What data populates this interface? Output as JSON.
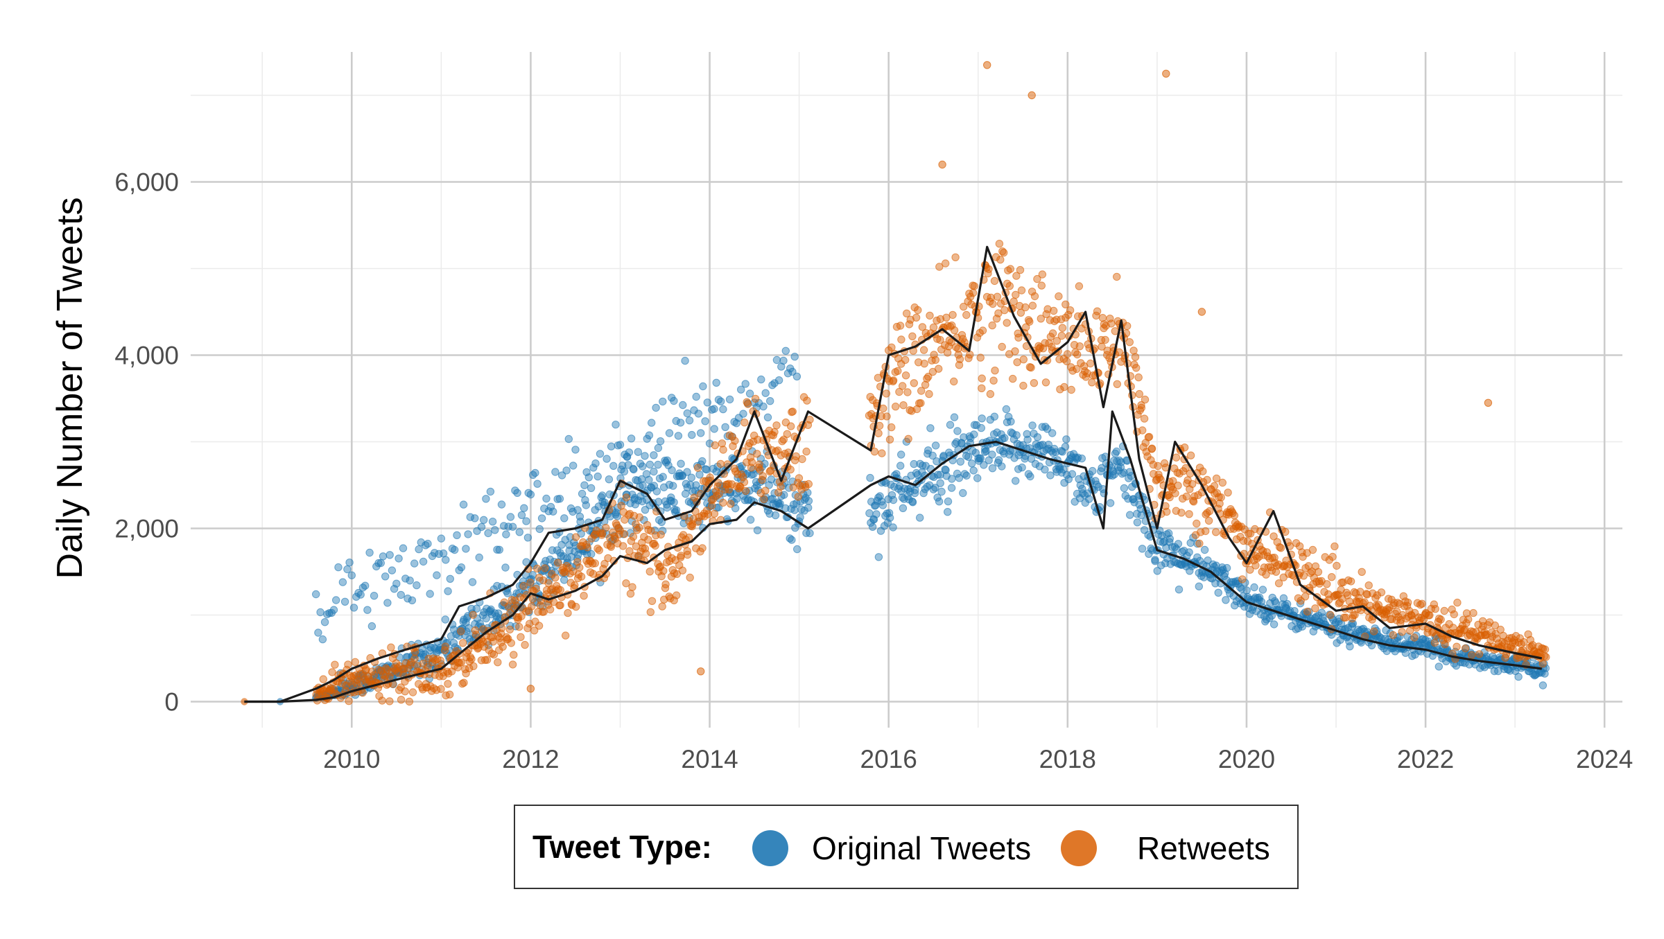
{
  "chart_data": {
    "type": "scatter",
    "title": "",
    "xlabel": "",
    "ylabel": "Daily Number of Tweets",
    "xlim": [
      2008.2,
      2024.2
    ],
    "ylim": [
      -300,
      7500
    ],
    "x_ticks": [
      2010,
      2012,
      2014,
      2016,
      2018,
      2020,
      2022,
      2024
    ],
    "x_tick_labels": [
      "2010",
      "2012",
      "2014",
      "2016",
      "2018",
      "2020",
      "2022",
      "2024"
    ],
    "y_ticks": [
      0,
      2000,
      4000,
      6000
    ],
    "y_tick_labels": [
      "0",
      "2,000",
      "4,000",
      "6,000"
    ],
    "grid": true,
    "legend": {
      "position": "bottom",
      "title": "Tweet Type:",
      "entries": [
        "Original Tweets",
        "Retweets"
      ]
    },
    "series": [
      {
        "name": "Original Tweets",
        "color": "#1f78b4",
        "trend_x": [
          2008.8,
          2009.2,
          2009.6,
          2009.8,
          2010.0,
          2010.3,
          2010.6,
          2011.0,
          2011.2,
          2011.5,
          2011.8,
          2012.0,
          2012.2,
          2012.5,
          2012.8,
          2013.0,
          2013.3,
          2013.5,
          2013.8,
          2014.0,
          2014.3,
          2014.5,
          2014.8,
          2015.1,
          2015.8,
          2016.0,
          2016.3,
          2016.6,
          2016.9,
          2017.2,
          2017.5,
          2017.8,
          2018.0,
          2018.2,
          2018.4,
          2018.5,
          2018.7,
          2019.0,
          2019.3,
          2019.6,
          2020.0,
          2020.3,
          2020.6,
          2021.0,
          2021.3,
          2021.6,
          2022.0,
          2022.3,
          2022.6,
          2023.0,
          2023.3
        ],
        "trend_y": [
          0,
          0,
          20,
          50,
          120,
          200,
          280,
          380,
          550,
          800,
          1000,
          1250,
          1180,
          1280,
          1450,
          1680,
          1600,
          1750,
          1850,
          2050,
          2100,
          2300,
          2200,
          2000,
          2500,
          2600,
          2500,
          2750,
          2950,
          3000,
          2900,
          2800,
          2750,
          2700,
          2000,
          3350,
          2800,
          1750,
          1650,
          1500,
          1150,
          1050,
          950,
          820,
          720,
          650,
          600,
          520,
          470,
          420,
          380
        ],
        "scatter_anchors": {
          "x": [
            2009.6,
            2009.9,
            2010.2,
            2010.6,
            2011.0,
            2011.4,
            2011.8,
            2012.0,
            2012.4,
            2012.8,
            2013.0,
            2013.5,
            2014.0,
            2014.5,
            2015.1,
            2015.8,
            2016.2,
            2016.6,
            2017.0,
            2017.5,
            2018.0,
            2018.3,
            2018.6,
            2019.0,
            2019.5,
            2020.0,
            2020.5,
            2021.0,
            2021.5,
            2022.0,
            2022.5,
            2023.0,
            2023.35
          ],
          "y": [
            50,
            150,
            250,
            400,
            600,
            900,
            1150,
            1350,
            1750,
            2100,
            2400,
            2350,
            2450,
            2450,
            2200,
            2200,
            2500,
            2650,
            2850,
            2950,
            2800,
            2400,
            2700,
            1800,
            1550,
            1200,
            1000,
            850,
            700,
            620,
            500,
            430,
            360
          ],
          "spread": [
            30,
            80,
            120,
            150,
            200,
            250,
            250,
            250,
            300,
            350,
            350,
            350,
            350,
            400,
            350,
            350,
            350,
            350,
            350,
            300,
            300,
            300,
            300,
            250,
            200,
            150,
            130,
            120,
            100,
            100,
            100,
            80,
            80
          ]
        },
        "high_cluster": {
          "x_range": [
            2009.6,
            2015.0
          ],
          "start_y": 1000,
          "end_y": 3800,
          "spread": 350
        }
      },
      {
        "name": "Retweets",
        "color": "#d95f02",
        "trend_x": [
          2008.8,
          2009.2,
          2009.6,
          2009.8,
          2010.0,
          2010.3,
          2010.6,
          2011.0,
          2011.2,
          2011.5,
          2011.8,
          2012.0,
          2012.2,
          2012.5,
          2012.8,
          2013.0,
          2013.3,
          2013.5,
          2013.8,
          2014.0,
          2014.3,
          2014.5,
          2014.8,
          2015.1,
          2015.8,
          2016.0,
          2016.3,
          2016.6,
          2016.9,
          2017.1,
          2017.4,
          2017.7,
          2018.0,
          2018.2,
          2018.4,
          2018.6,
          2018.8,
          2019.0,
          2019.2,
          2019.5,
          2019.8,
          2020.0,
          2020.3,
          2020.6,
          2021.0,
          2021.3,
          2021.6,
          2022.0,
          2022.3,
          2022.6,
          2023.0,
          2023.3
        ],
        "trend_y": [
          0,
          0,
          150,
          250,
          380,
          500,
          600,
          720,
          1100,
          1200,
          1350,
          1600,
          1950,
          2000,
          2100,
          2550,
          2400,
          2100,
          2200,
          2500,
          2800,
          3350,
          2550,
          3350,
          2900,
          4000,
          4100,
          4300,
          4050,
          5250,
          4450,
          3900,
          4150,
          4500,
          3400,
          4400,
          2800,
          2000,
          3000,
          2500,
          1900,
          1600,
          2200,
          1350,
          1050,
          1100,
          850,
          900,
          750,
          650,
          560,
          500
        ],
        "scatter_anchors": {
          "x": [
            2009.6,
            2009.9,
            2010.2,
            2010.6,
            2011.0,
            2011.4,
            2011.8,
            2012.0,
            2012.4,
            2012.8,
            2013.0,
            2013.5,
            2014.0,
            2014.5,
            2015.1,
            2015.8,
            2016.2,
            2016.6,
            2017.0,
            2017.3,
            2017.7,
            2018.0,
            2018.3,
            2018.6,
            2019.0,
            2019.3,
            2019.7,
            2020.0,
            2020.5,
            2021.0,
            2021.5,
            2022.0,
            2022.5,
            2023.0,
            2023.35
          ],
          "y": [
            100,
            200,
            300,
            400,
            350,
            650,
            900,
            1100,
            1400,
            1750,
            2000,
            1400,
            2400,
            2900,
            2900,
            3300,
            3900,
            4100,
            4500,
            4600,
            4250,
            4100,
            4000,
            4200,
            2500,
            2600,
            2200,
            1800,
            1600,
            1200,
            1050,
            950,
            800,
            650,
            550
          ],
          "spread": [
            60,
            200,
            200,
            250,
            250,
            250,
            250,
            300,
            350,
            400,
            400,
            400,
            400,
            500,
            500,
            500,
            550,
            550,
            650,
            650,
            550,
            500,
            450,
            500,
            400,
            400,
            350,
            300,
            300,
            250,
            200,
            200,
            200,
            150,
            120
          ]
        },
        "outliers": {
          "x": [
            2017.1,
            2017.6,
            2019.1,
            2022.7,
            2016.6,
            2019.5,
            2013.9,
            2012.0
          ],
          "y": [
            7350,
            7000,
            7250,
            3450,
            6200,
            4500,
            350,
            150
          ]
        }
      }
    ]
  }
}
